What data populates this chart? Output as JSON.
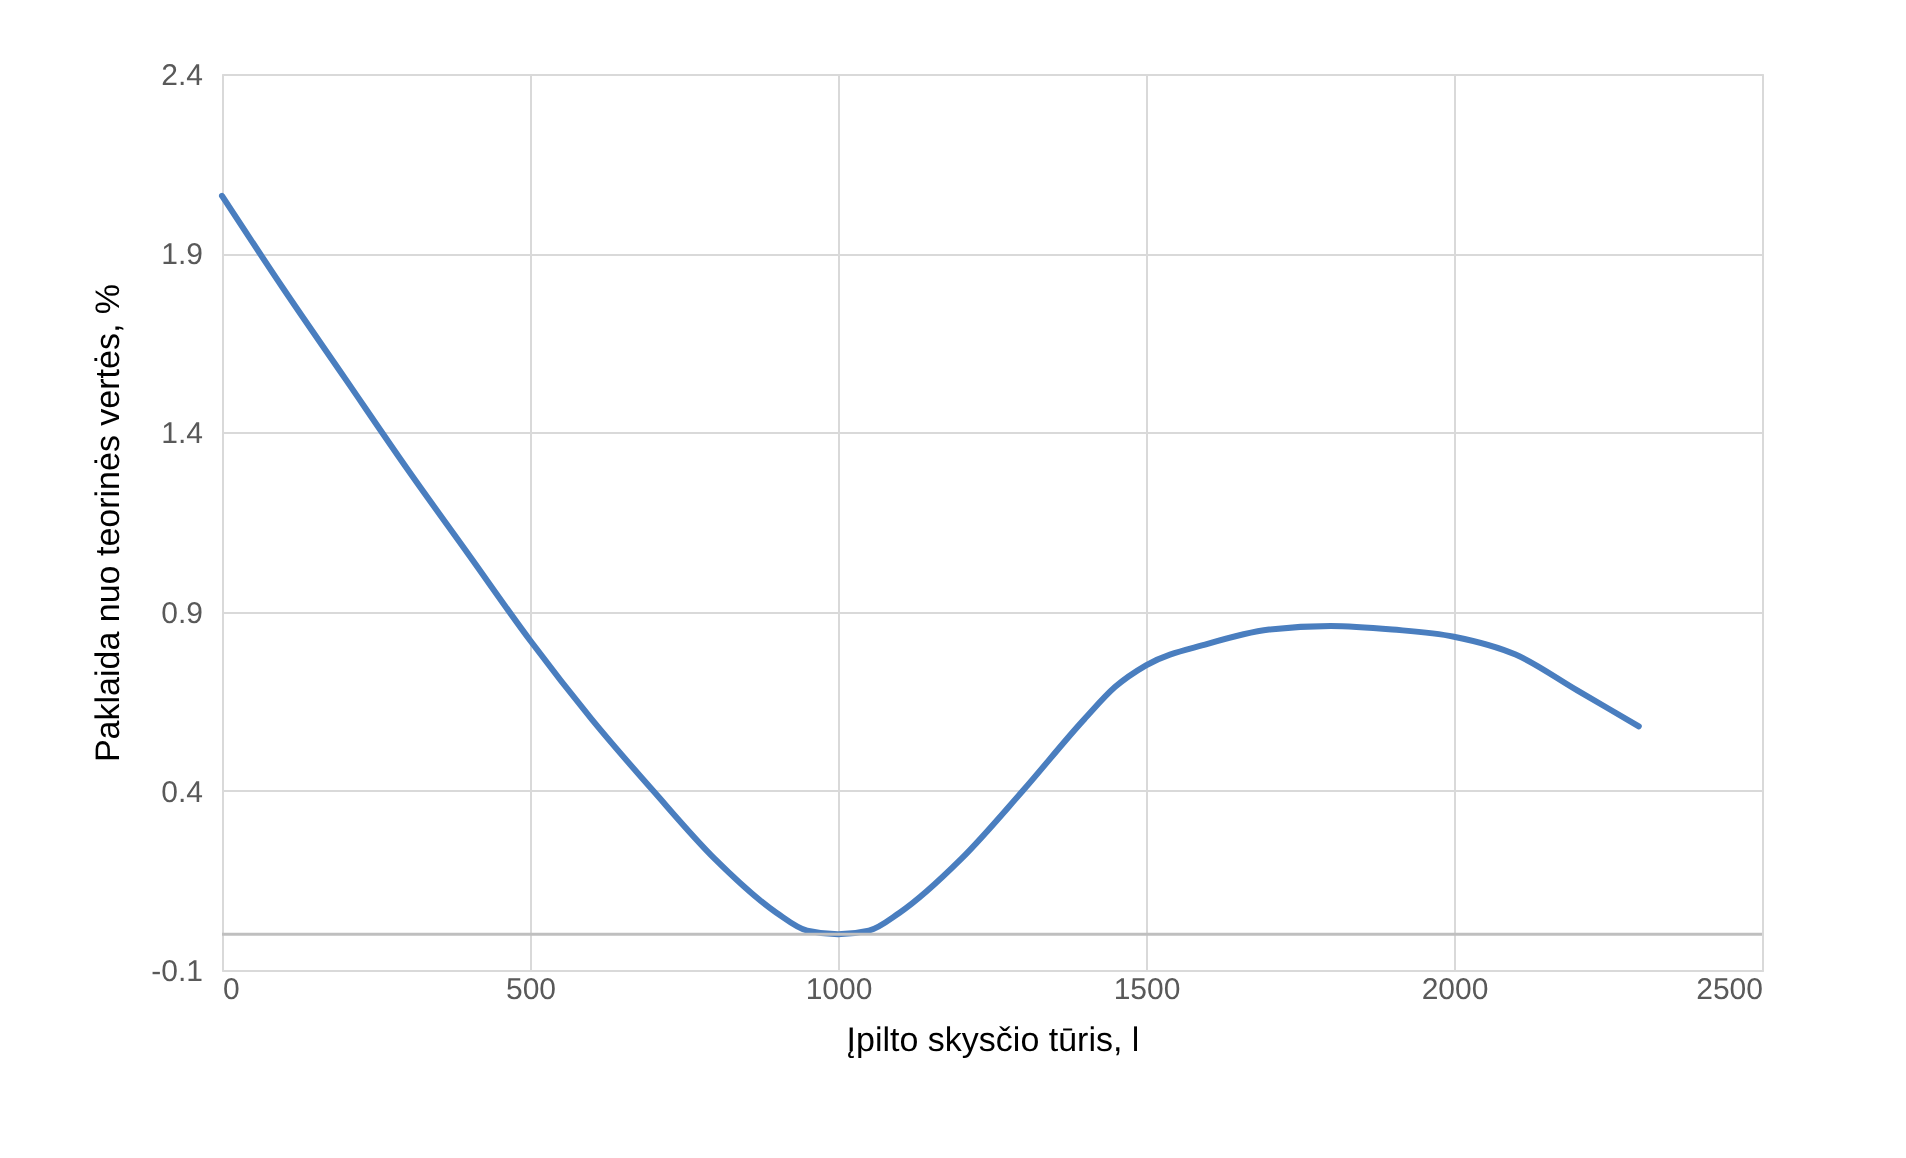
{
  "chart_data": {
    "type": "line",
    "xlabel": "Įpilto skysčio tūris, l",
    "ylabel": "Paklaida nuo teorinės vertės, %",
    "x": [
      0,
      100,
      200,
      300,
      400,
      500,
      600,
      700,
      800,
      900,
      950,
      1000,
      1050,
      1100,
      1200,
      1300,
      1400,
      1450,
      1500,
      1600,
      1700,
      1800,
      1900,
      2000,
      2100,
      2200,
      2300
    ],
    "series": [
      {
        "color": "#4a7ebf",
        "values": [
          2.06,
          1.8,
          1.55,
          1.3,
          1.06,
          0.82,
          0.6,
          0.4,
          0.21,
          0.06,
          0.01,
          0.0,
          0.01,
          0.06,
          0.21,
          0.4,
          0.6,
          0.69,
          0.75,
          0.81,
          0.85,
          0.86,
          0.85,
          0.83,
          0.78,
          0.68,
          0.58
        ]
      }
    ],
    "xlim": [
      0,
      2500
    ],
    "xticks": [
      0,
      500,
      1000,
      1500,
      2000,
      2500
    ],
    "ylim": [
      -0.1,
      2.4
    ],
    "yticks": [
      -0.1,
      0.4,
      0.9,
      1.4,
      1.9,
      2.4
    ],
    "ref_lines": [
      {
        "axis": "y",
        "value": 0,
        "color": "#bfbfbf"
      }
    ],
    "grid": true,
    "marker": "none",
    "line_style": "solid"
  }
}
